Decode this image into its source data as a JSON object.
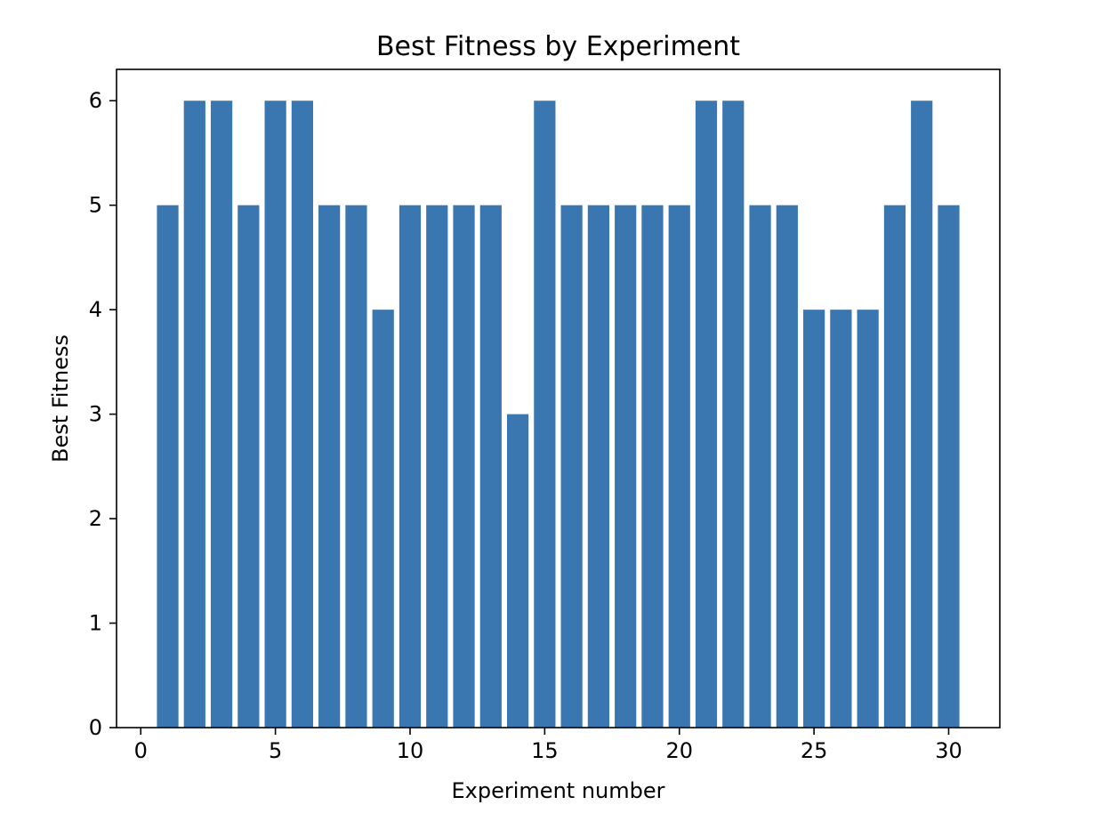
{
  "chart_data": {
    "type": "bar",
    "title": "Best Fitness by Experiment",
    "xlabel": "Experiment number",
    "ylabel": "Best Fitness",
    "x": [
      1,
      2,
      3,
      4,
      5,
      6,
      7,
      8,
      9,
      10,
      11,
      12,
      13,
      14,
      15,
      16,
      17,
      18,
      19,
      20,
      21,
      22,
      23,
      24,
      25,
      26,
      27,
      28,
      29,
      30
    ],
    "values": [
      5,
      6,
      6,
      5,
      6,
      6,
      5,
      5,
      4,
      5,
      5,
      5,
      5,
      3,
      6,
      5,
      5,
      5,
      5,
      5,
      6,
      6,
      5,
      5,
      4,
      4,
      4,
      5,
      6,
      5
    ],
    "xlim": [
      -0.9,
      31.9
    ],
    "ylim": [
      0,
      6.3
    ],
    "xticks": [
      0,
      5,
      10,
      15,
      20,
      25,
      30
    ],
    "yticks": [
      0,
      1,
      2,
      3,
      4,
      5,
      6
    ],
    "bar_width": 0.8,
    "bar_color": "#3a76af",
    "grid": false,
    "legend": "none"
  }
}
